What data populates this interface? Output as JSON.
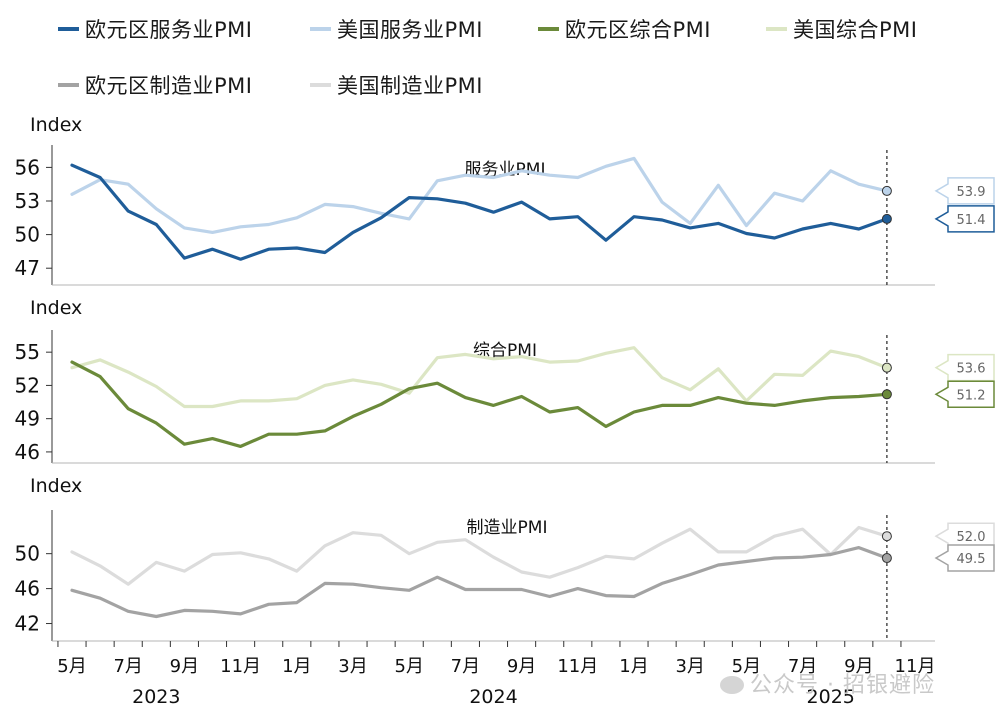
{
  "legend": [
    {
      "label": "欧元区服务业PMI",
      "color": "#1f5d99"
    },
    {
      "label": "美国服务业PMI",
      "color": "#bcd3ea"
    },
    {
      "label": "欧元区综合PMI",
      "color": "#6b8a3a"
    },
    {
      "label": "美国综合PMI",
      "color": "#dce6c4"
    },
    {
      "label": "欧元区制造业PMI",
      "color": "#a3a3a3"
    },
    {
      "label": "美国制造业PMI",
      "color": "#dcdcdc"
    }
  ],
  "watermark": "公众号 · 招银避险",
  "chart_data": [
    {
      "type": "line",
      "title": "服务业PMI",
      "ylabel": "Index",
      "ylim": [
        45.5,
        58
      ],
      "yticks": [
        47,
        50,
        53,
        56
      ],
      "x": [
        "2023-05",
        "2023-06",
        "2023-07",
        "2023-08",
        "2023-09",
        "2023-10",
        "2023-11",
        "2023-12",
        "2024-01",
        "2024-02",
        "2024-03",
        "2024-04",
        "2024-05",
        "2024-06",
        "2024-07",
        "2024-08",
        "2024-09",
        "2024-10",
        "2024-11",
        "2024-12",
        "2025-01",
        "2025-02",
        "2025-03",
        "2025-04",
        "2025-05",
        "2025-06",
        "2025-07",
        "2025-08",
        "2025-09",
        "2025-10"
      ],
      "series": [
        {
          "name": "美国服务业PMI",
          "color": "#bcd3ea",
          "values": [
            53.6,
            54.9,
            54.5,
            52.3,
            50.6,
            50.2,
            50.7,
            50.9,
            51.5,
            52.7,
            52.5,
            51.9,
            51.4,
            54.8,
            55.3,
            55.1,
            55.7,
            55.3,
            55.1,
            56.1,
            56.8,
            52.9,
            51.0,
            54.4,
            50.8,
            53.7,
            53.0,
            55.7,
            54.5,
            53.9
          ]
        },
        {
          "name": "欧元区服务业PMI",
          "color": "#1f5d99",
          "values": [
            56.2,
            55.1,
            52.1,
            50.9,
            47.9,
            48.7,
            47.8,
            48.7,
            48.8,
            48.4,
            50.2,
            51.5,
            53.3,
            53.2,
            52.8,
            52.0,
            52.9,
            51.4,
            51.6,
            49.5,
            51.6,
            51.3,
            50.6,
            51.0,
            50.1,
            49.7,
            50.5,
            51.0,
            50.5,
            51.4
          ]
        }
      ],
      "callouts": [
        {
          "value": "53.9",
          "series": "美国服务业PMI"
        },
        {
          "value": "51.4",
          "series": "欧元区服务业PMI"
        }
      ]
    },
    {
      "type": "line",
      "title": "综合PMI",
      "ylabel": "Index",
      "ylim": [
        45,
        57
      ],
      "yticks": [
        46,
        49,
        52,
        55
      ],
      "x": [
        "2023-05",
        "2023-06",
        "2023-07",
        "2023-08",
        "2023-09",
        "2023-10",
        "2023-11",
        "2023-12",
        "2024-01",
        "2024-02",
        "2024-03",
        "2024-04",
        "2024-05",
        "2024-06",
        "2024-07",
        "2024-08",
        "2024-09",
        "2024-10",
        "2024-11",
        "2024-12",
        "2025-01",
        "2025-02",
        "2025-03",
        "2025-04",
        "2025-05",
        "2025-06",
        "2025-07",
        "2025-08",
        "2025-09",
        "2025-10"
      ],
      "series": [
        {
          "name": "美国综合PMI",
          "color": "#dce6c4",
          "values": [
            53.6,
            54.3,
            53.2,
            51.9,
            50.1,
            50.1,
            50.6,
            50.6,
            50.8,
            52.0,
            52.5,
            52.1,
            51.3,
            54.5,
            54.8,
            54.4,
            54.6,
            54.1,
            54.2,
            54.9,
            55.4,
            52.7,
            51.6,
            53.5,
            50.6,
            53.0,
            52.9,
            55.1,
            54.6,
            53.6
          ]
        },
        {
          "name": "欧元区综合PMI",
          "color": "#6b8a3a",
          "values": [
            54.1,
            52.8,
            49.9,
            48.6,
            46.7,
            47.2,
            46.5,
            47.6,
            47.6,
            47.9,
            49.2,
            50.3,
            51.7,
            52.2,
            50.9,
            50.2,
            51.0,
            49.6,
            50.0,
            48.3,
            49.6,
            50.2,
            50.2,
            50.9,
            50.4,
            50.2,
            50.6,
            50.9,
            51.0,
            51.2
          ]
        }
      ],
      "callouts": [
        {
          "value": "53.6",
          "series": "美国综合PMI"
        },
        {
          "value": "51.2",
          "series": "欧元区综合PMI"
        }
      ]
    },
    {
      "type": "line",
      "title": "制造业PMI",
      "ylabel": "Index",
      "ylim": [
        40,
        55
      ],
      "yticks": [
        42,
        46,
        50
      ],
      "x": [
        "2023-05",
        "2023-06",
        "2023-07",
        "2023-08",
        "2023-09",
        "2023-10",
        "2023-11",
        "2023-12",
        "2024-01",
        "2024-02",
        "2024-03",
        "2024-04",
        "2024-05",
        "2024-06",
        "2024-07",
        "2024-08",
        "2024-09",
        "2024-10",
        "2024-11",
        "2024-12",
        "2025-01",
        "2025-02",
        "2025-03",
        "2025-04",
        "2025-05",
        "2025-06",
        "2025-07",
        "2025-08",
        "2025-09",
        "2025-10"
      ],
      "series": [
        {
          "name": "美国制造业PMI",
          "color": "#dcdcdc",
          "values": [
            50.2,
            48.6,
            46.5,
            49.0,
            48.0,
            49.9,
            50.1,
            49.4,
            48.0,
            50.9,
            52.4,
            52.1,
            50.0,
            51.3,
            51.6,
            49.6,
            47.9,
            47.3,
            48.4,
            49.7,
            49.4,
            51.2,
            52.8,
            50.2,
            50.2,
            52.0,
            52.8,
            49.9,
            53.0,
            52.0
          ]
        },
        {
          "name": "欧元区制造业PMI",
          "color": "#a3a3a3",
          "values": [
            45.8,
            44.9,
            43.4,
            42.8,
            43.5,
            43.4,
            43.1,
            44.2,
            44.4,
            46.6,
            46.5,
            46.1,
            45.8,
            47.3,
            45.9,
            45.9,
            45.9,
            45.1,
            46.0,
            45.2,
            45.1,
            46.6,
            47.6,
            48.7,
            49.1,
            49.5,
            49.6,
            49.9,
            50.7,
            49.5
          ]
        }
      ],
      "callouts": [
        {
          "value": "52.0",
          "series": "美国制造业PMI"
        },
        {
          "value": "49.5",
          "series": "欧元区制造业PMI"
        }
      ]
    }
  ],
  "xaxis": {
    "month_labels": [
      "5月",
      "7月",
      "9月",
      "11月",
      "1月",
      "3月",
      "5月",
      "7月",
      "9月",
      "11月",
      "1月",
      "3月",
      "5月",
      "7月",
      "9月",
      "11月"
    ],
    "year_labels": [
      "2023",
      "2024",
      "2025"
    ]
  }
}
